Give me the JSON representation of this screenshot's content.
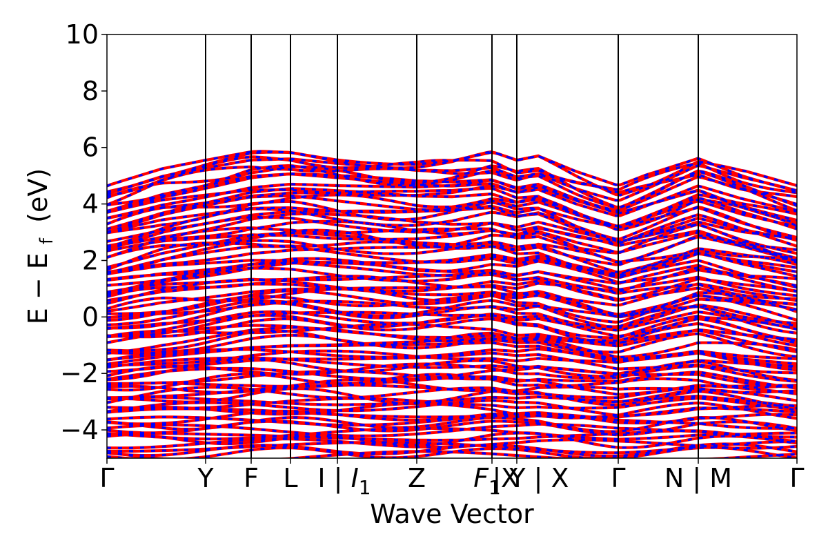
{
  "chart_data": {
    "type": "line",
    "title": "",
    "xlabel": "Wave Vector",
    "ylabel": "E − E",
    "ylabel_subscript": "f",
    "ylabel_unit": "(eV)",
    "ylim": [
      -5,
      10
    ],
    "yticks": [
      {
        "value": -4,
        "label": "−4"
      },
      {
        "value": -2,
        "label": "−2"
      },
      {
        "value": 0,
        "label": "0"
      },
      {
        "value": 2,
        "label": "2"
      },
      {
        "value": 4,
        "label": "4"
      },
      {
        "value": 6,
        "label": "6"
      },
      {
        "value": 8,
        "label": "8"
      },
      {
        "value": 10,
        "label": "10"
      }
    ],
    "xlim": [
      0,
      1
    ],
    "kpoints": [
      {
        "pos": 0.0,
        "label": "Γ"
      },
      {
        "pos": 0.143,
        "label": "Y"
      },
      {
        "pos": 0.209,
        "label": "F"
      },
      {
        "pos": 0.266,
        "label": "L"
      },
      {
        "pos": 0.334,
        "label": "I | ",
        "label_sub_main": "I",
        "label_sub": "1"
      },
      {
        "pos": 0.449,
        "label": "Z"
      },
      {
        "pos": 0.558,
        "label": "F",
        "label_sub": "1",
        "label_extra": "X"
      },
      {
        "pos": 0.594,
        "label": "| Y | X",
        "label_sub_main": "",
        "label_sub": "1"
      },
      {
        "pos": 0.741,
        "label": "Γ"
      },
      {
        "pos": 0.857,
        "label": "N | M"
      },
      {
        "pos": 1.0,
        "label": "Γ"
      }
    ],
    "grid": false,
    "legend": "none",
    "series": [
      {
        "color": "#ff0000",
        "style": "solid"
      },
      {
        "color": "#0000ff",
        "style": "dashed"
      }
    ],
    "band_edges": {
      "top_curve": [
        [
          0.0,
          4.65
        ],
        [
          0.04,
          4.95
        ],
        [
          0.08,
          5.25
        ],
        [
          0.143,
          5.55
        ],
        [
          0.209,
          5.85
        ],
        [
          0.266,
          5.9
        ],
        [
          0.334,
          5.75
        ],
        [
          0.4,
          5.65
        ],
        [
          0.449,
          5.6
        ],
        [
          0.5,
          5.65
        ],
        [
          0.558,
          5.85
        ],
        [
          0.594,
          5.55
        ],
        [
          0.625,
          5.7
        ],
        [
          0.68,
          5.15
        ],
        [
          0.741,
          4.65
        ],
        [
          0.8,
          5.2
        ],
        [
          0.857,
          5.75
        ],
        [
          0.92,
          5.2
        ],
        [
          1.0,
          4.65
        ]
      ],
      "bottom": -5.0
    },
    "bands_count": 90
  }
}
